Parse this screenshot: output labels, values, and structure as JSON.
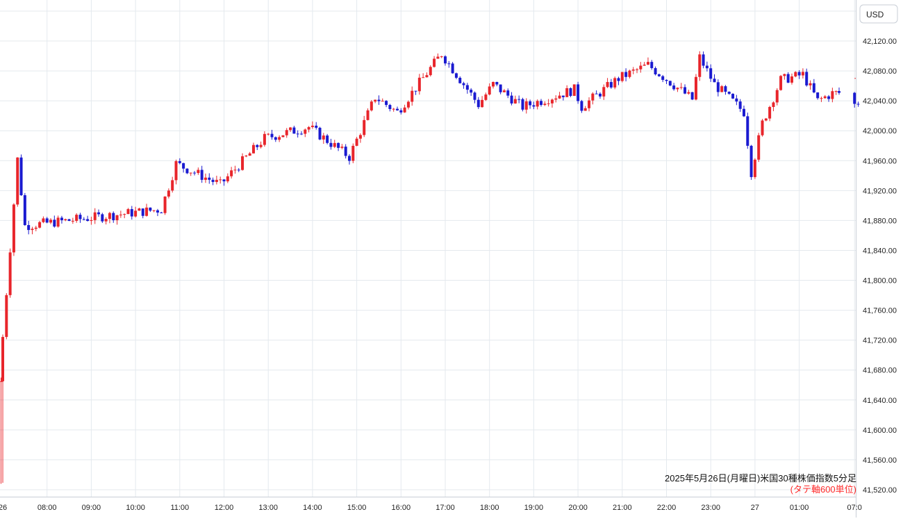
{
  "currency_label": "USD",
  "caption": {
    "line1": "2025年5月26日(月曜日)米国30種株価指数5分足",
    "line2": "(タテ軸600単位)"
  },
  "colors": {
    "up": "#e8252b",
    "down": "#1a1ad0",
    "grid": "#e4e9ee",
    "axis_text": "#222222",
    "caption_note": "#ff2a2a",
    "dashed_level": "#e8252b"
  },
  "chart_data": {
    "type": "candlestick",
    "title": "2025年5月26日(月曜日)米国30種株価指数5分足",
    "ylabel": "USD",
    "ylim": [
      41500,
      42160
    ],
    "y_ticks": [
      42120,
      42080,
      42040,
      42000,
      41960,
      41920,
      41880,
      41840,
      41800,
      41760,
      41720,
      41680,
      41640,
      41600,
      41560,
      41520
    ],
    "y_tick_labels": [
      "42,120.00",
      "42,080.00",
      "42,040.00",
      "42,000.00",
      "41,960.00",
      "41,920.00",
      "41,880.00",
      "41,840.00",
      "41,800.00",
      "41,760.00",
      "41,720.00",
      "41,680.00",
      "41,640.00",
      "41,600.00",
      "41,560.00",
      "41,520.00"
    ],
    "x_ticks": [
      "26",
      "08:00",
      "09:00",
      "10:00",
      "11:00",
      "12:00",
      "13:00",
      "14:00",
      "15:00",
      "16:00",
      "17:00",
      "18:00",
      "19:00",
      "20:00",
      "21:00",
      "22:00",
      "23:00",
      "27",
      "01:00",
      "07:0"
    ],
    "candle_interval_minutes": 5,
    "grid": true,
    "key_closes": [
      {
        "x": "26 07:00",
        "close": 41665
      },
      {
        "x": "26 07:25",
        "close": 41962
      },
      {
        "x": "26 07:35",
        "close": 41873
      },
      {
        "x": "26 10:40",
        "close": 41895
      },
      {
        "x": "26 11:00",
        "close": 41956
      },
      {
        "x": "26 12:00",
        "close": 41928
      },
      {
        "x": "26 13:00",
        "close": 41990
      },
      {
        "x": "26 14:00",
        "close": 42005
      },
      {
        "x": "26 14:55",
        "close": 41965
      },
      {
        "x": "26 15:30",
        "close": 42045
      },
      {
        "x": "26 16:00",
        "close": 42025
      },
      {
        "x": "26 17:00",
        "close": 42103
      },
      {
        "x": "26 17:50",
        "close": 42035
      },
      {
        "x": "26 18:10",
        "close": 42062
      },
      {
        "x": "26 18:50",
        "close": 42032
      },
      {
        "x": "26 20:00",
        "close": 42055
      },
      {
        "x": "26 20:10",
        "close": 42032
      },
      {
        "x": "26 21:00",
        "close": 42070
      },
      {
        "x": "26 21:40",
        "close": 42088
      },
      {
        "x": "26 22:40",
        "close": 42042
      },
      {
        "x": "26 22:50",
        "close": 42098
      },
      {
        "x": "26 23:10",
        "close": 42062
      },
      {
        "x": "26 23:50",
        "close": 42025
      },
      {
        "x": "27 00:00",
        "close": 41945
      },
      {
        "x": "27 00:15",
        "close": 42010
      },
      {
        "x": "27 00:40",
        "close": 42068
      },
      {
        "x": "27 01:10",
        "close": 42075
      },
      {
        "x": "27 01:30",
        "close": 42040
      },
      {
        "x": "27 01:50",
        "close": 42050
      },
      {
        "x": "27 07:00",
        "close": 42070
      },
      {
        "x": "27 07:05",
        "close": 42035
      }
    ]
  }
}
